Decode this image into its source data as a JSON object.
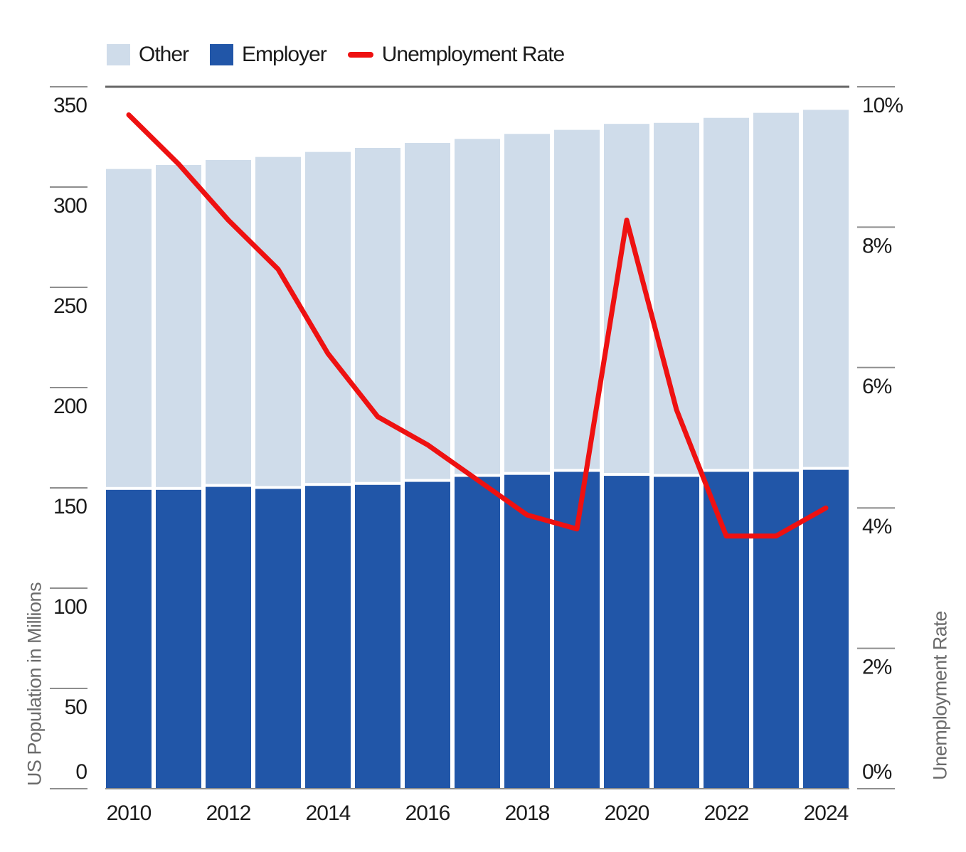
{
  "legend": {
    "items": [
      {
        "label": "Other",
        "type": "swatch",
        "color": "#cfdcea"
      },
      {
        "label": "Employer",
        "type": "swatch",
        "color": "#2156a8"
      },
      {
        "label": "Unemployment Rate",
        "type": "line",
        "color": "#ee1111"
      }
    ]
  },
  "axes": {
    "left_title": "US Population in Millions",
    "right_title": "Unemployment Rate",
    "left_ticks": [
      {
        "value": 0,
        "label": "0"
      },
      {
        "value": 50,
        "label": "50"
      },
      {
        "value": 100,
        "label": "100"
      },
      {
        "value": 150,
        "label": "150"
      },
      {
        "value": 200,
        "label": "200"
      },
      {
        "value": 250,
        "label": "250"
      },
      {
        "value": 300,
        "label": "300"
      },
      {
        "value": 350,
        "label": "350"
      }
    ],
    "right_ticks": [
      {
        "value": 0,
        "label": "0%"
      },
      {
        "value": 2,
        "label": "2%"
      },
      {
        "value": 4,
        "label": "4%"
      },
      {
        "value": 6,
        "label": "6%"
      },
      {
        "value": 8,
        "label": "8%"
      },
      {
        "value": 10,
        "label": "10%"
      }
    ],
    "x_ticks": [
      "2010",
      "2012",
      "2014",
      "2016",
      "2018",
      "2020",
      "2022",
      "2024"
    ]
  },
  "chart_data": {
    "type": "bar",
    "subtype": "stacked-bar-with-line",
    "categories": [
      2010,
      2011,
      2012,
      2013,
      2014,
      2015,
      2016,
      2017,
      2018,
      2019,
      2020,
      2021,
      2022,
      2023,
      2024
    ],
    "series": [
      {
        "name": "Employer",
        "type": "bar",
        "axis": "left",
        "color": "#2156a8",
        "values": [
          149,
          149,
          150.5,
          149.5,
          151,
          151.5,
          153,
          155.5,
          156.5,
          158,
          156,
          155.5,
          158,
          158,
          159
        ]
      },
      {
        "name": "Other",
        "type": "bar",
        "axis": "left",
        "color": "#cfdcea",
        "values": [
          160,
          162,
          163,
          165.5,
          166.5,
          168,
          169,
          168.5,
          170,
          170.5,
          175.5,
          176.5,
          176.5,
          179,
          179.5
        ]
      },
      {
        "name": "Unemployment Rate",
        "type": "line",
        "axis": "right",
        "color": "#ee1111",
        "values": [
          9.6,
          8.9,
          8.1,
          7.4,
          6.2,
          5.3,
          4.9,
          4.4,
          3.9,
          3.7,
          8.1,
          5.4,
          3.6,
          3.6,
          4.0
        ]
      }
    ],
    "stacked_totals": [
      309,
      311,
      313.5,
      315,
      317.5,
      319.5,
      322,
      324,
      326.5,
      328.5,
      331.5,
      332,
      334.5,
      337,
      338.5
    ],
    "title": "",
    "xlabel": "",
    "ylabel_left": "US Population in Millions",
    "ylabel_right": "Unemployment Rate",
    "ylim_left": [
      0,
      350
    ],
    "ylim_right": [
      0,
      10
    ],
    "grid": false,
    "legend_position": "top-left",
    "styles": {
      "plot_top_border_color": "#666666",
      "axis_line_color": "#8e8e8e",
      "tick_color": "#8e8e8e",
      "tick_text_color": "#1c1c1c",
      "axis_title_color": "#6b6b6b",
      "background": "#ffffff"
    }
  }
}
